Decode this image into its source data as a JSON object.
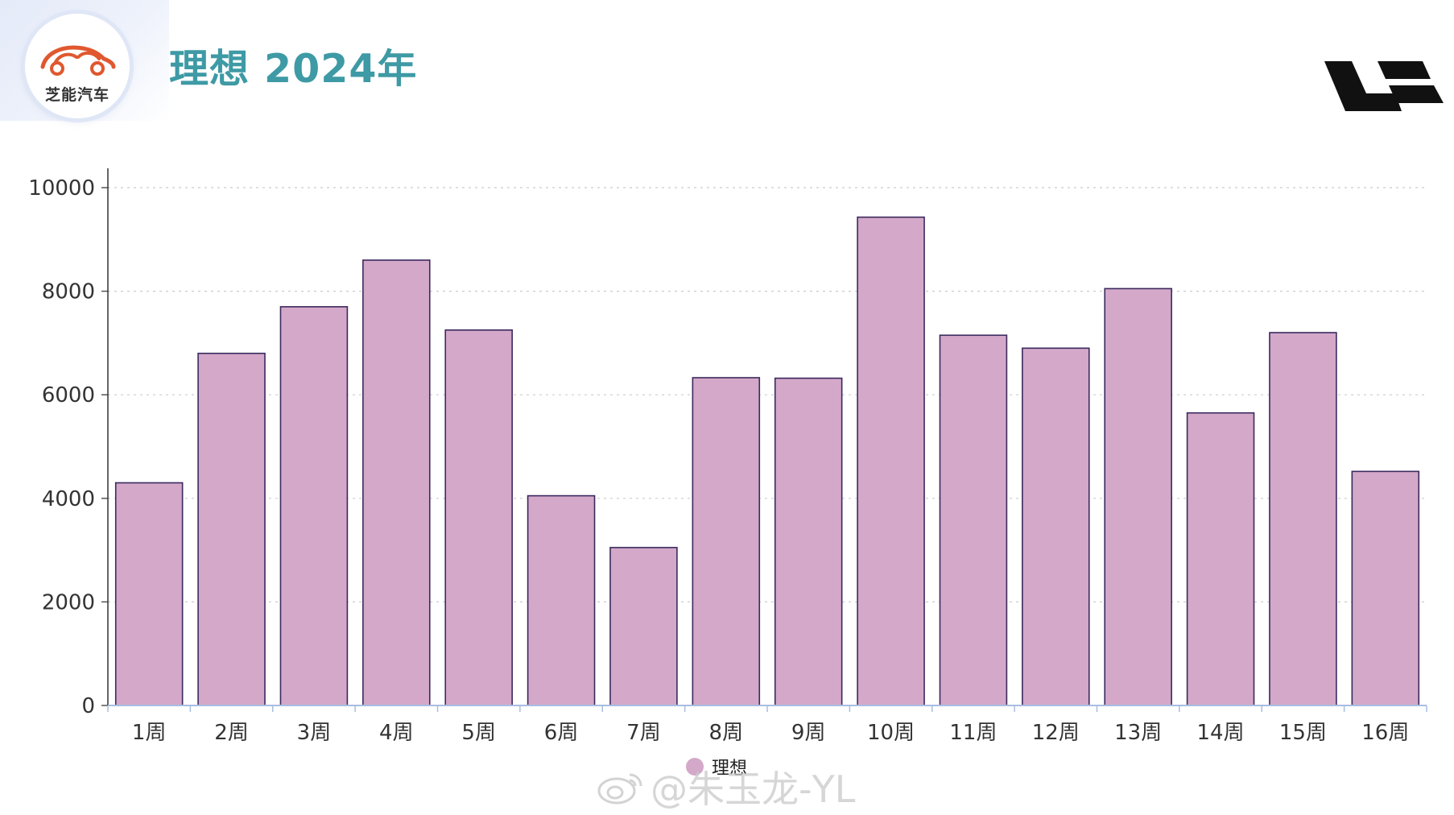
{
  "header": {
    "brand_name": "芝能汽车",
    "title": "理想 2024年"
  },
  "watermark": {
    "text": "@朱玉龙-YL",
    "icon": "weibo-icon"
  },
  "colors": {
    "bar_fill": "#d4a8c9",
    "bar_stroke": "#3a2a5e",
    "title": "#3e9aa5",
    "axis": "#a9bde0",
    "grid": "#cccccc"
  },
  "chart_data": {
    "type": "bar",
    "title": "理想 2024年",
    "xlabel": "",
    "ylabel": "",
    "categories": [
      "1周",
      "2周",
      "3周",
      "4周",
      "5周",
      "6周",
      "7周",
      "8周",
      "9周",
      "10周",
      "11周",
      "12周",
      "13周",
      "14周",
      "15周",
      "16周"
    ],
    "series": [
      {
        "name": "理想",
        "values": [
          4300,
          6800,
          7700,
          8600,
          7250,
          4050,
          3050,
          6330,
          6320,
          9430,
          7150,
          6900,
          8050,
          5650,
          7200,
          4520
        ]
      }
    ],
    "ylim": [
      0,
      10000
    ],
    "yticks": [
      0,
      2000,
      4000,
      6000,
      8000,
      10000
    ],
    "grid": "horizontal dashed",
    "legend": "bottom-center"
  }
}
